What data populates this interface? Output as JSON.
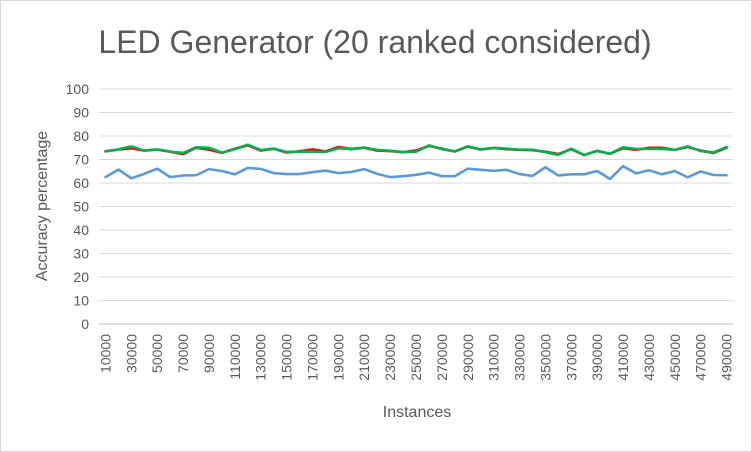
{
  "chart_data": {
    "type": "line",
    "title": "LED Generator (20 ranked considered)",
    "xlabel": "Instances",
    "ylabel": "Accuracy percentage",
    "ylim": [
      0,
      100
    ],
    "yticks": [
      0,
      10,
      20,
      30,
      40,
      50,
      60,
      70,
      80,
      90,
      100
    ],
    "grid": true,
    "legend": "none",
    "x": [
      10000,
      20000,
      30000,
      40000,
      50000,
      60000,
      70000,
      80000,
      90000,
      100000,
      110000,
      120000,
      130000,
      140000,
      150000,
      160000,
      170000,
      180000,
      190000,
      200000,
      210000,
      220000,
      230000,
      240000,
      250000,
      260000,
      270000,
      280000,
      290000,
      300000,
      310000,
      320000,
      330000,
      340000,
      350000,
      360000,
      370000,
      380000,
      390000,
      400000,
      410000,
      420000,
      430000,
      440000,
      450000,
      460000,
      470000,
      480000,
      490000
    ],
    "x_tick_labels": [
      "10000",
      "30000",
      "50000",
      "70000",
      "90000",
      "110000",
      "130000",
      "150000",
      "170000",
      "190000",
      "210000",
      "230000",
      "250000",
      "270000",
      "290000",
      "310000",
      "330000",
      "350000",
      "370000",
      "390000",
      "410000",
      "430000",
      "450000",
      "470000",
      "490000"
    ],
    "series": [
      {
        "color": "#ff0000",
        "values": [
          73.5,
          74.2,
          74.8,
          73.8,
          74.2,
          73.3,
          72.3,
          75.0,
          74.2,
          72.8,
          74.6,
          76.0,
          73.8,
          74.6,
          73.0,
          73.5,
          74.3,
          73.4,
          75.3,
          74.5,
          75.0,
          73.8,
          73.6,
          73.1,
          73.8,
          75.8,
          74.6,
          73.4,
          75.5,
          74.2,
          74.9,
          74.4,
          74.1,
          74.0,
          73.3,
          72.3,
          74.4,
          71.9,
          73.7,
          72.4,
          74.8,
          74.1,
          75.0,
          75.0,
          74.1,
          75.3,
          73.8,
          72.8,
          75.0
        ]
      },
      {
        "color": "#00b050",
        "values": [
          73.5,
          74.3,
          75.6,
          73.8,
          74.3,
          73.4,
          72.8,
          75.2,
          75.0,
          72.9,
          74.4,
          76.3,
          74.0,
          74.6,
          73.2,
          73.3,
          73.3,
          73.2,
          74.8,
          74.4,
          75.1,
          74.1,
          73.7,
          73.2,
          73.3,
          76.0,
          74.4,
          73.5,
          75.6,
          74.3,
          75.0,
          74.6,
          74.2,
          74.2,
          73.1,
          72.0,
          74.6,
          71.9,
          73.6,
          72.5,
          75.2,
          74.5,
          74.5,
          74.5,
          74.1,
          75.6,
          73.6,
          73.0,
          75.3
        ]
      },
      {
        "color": "#5b9bd5",
        "values": [
          62.5,
          65.7,
          62.0,
          63.9,
          66.1,
          62.5,
          63.2,
          63.3,
          65.9,
          65.1,
          63.7,
          66.4,
          66.0,
          64.2,
          63.8,
          63.8,
          64.6,
          65.3,
          64.2,
          64.7,
          65.9,
          63.9,
          62.5,
          62.9,
          63.5,
          64.4,
          62.9,
          62.9,
          66.1,
          65.6,
          65.2,
          65.6,
          63.8,
          63.0,
          66.7,
          63.2,
          63.7,
          63.7,
          65.1,
          61.7,
          67.2,
          64.1,
          65.4,
          63.7,
          65.1,
          62.4,
          64.9,
          63.4,
          63.3
        ]
      }
    ]
  }
}
